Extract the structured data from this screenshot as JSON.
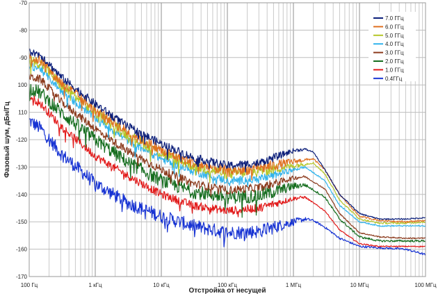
{
  "chart_data": {
    "type": "line",
    "xlabel": "Отстройка от несущей",
    "ylabel": "Фазовый шум, дБн/Гц",
    "x_scale": "log",
    "xlim": [
      100,
      100000000
    ],
    "ylim": [
      -170,
      -70
    ],
    "grid": true,
    "legend_position": "top-right",
    "x_ticks": [
      {
        "value": 100,
        "label": "100 Гц"
      },
      {
        "value": 1000,
        "label": "1 кГц"
      },
      {
        "value": 10000,
        "label": "10 кГц"
      },
      {
        "value": 100000,
        "label": "100 кГц"
      },
      {
        "value": 1000000,
        "label": "1 МГц"
      },
      {
        "value": 10000000,
        "label": "10 МГц"
      },
      {
        "value": 100000000,
        "label": "100 МГц"
      }
    ],
    "y_ticks": [
      {
        "value": -70,
        "label": "-70"
      },
      {
        "value": -80,
        "label": "-80"
      },
      {
        "value": -90,
        "label": "-90"
      },
      {
        "value": -100,
        "label": "100"
      },
      {
        "value": -110,
        "label": "110"
      },
      {
        "value": -120,
        "label": "-120"
      },
      {
        "value": -130,
        "label": "-130"
      },
      {
        "value": -140,
        "label": "-140"
      },
      {
        "value": -150,
        "label": "-150"
      },
      {
        "value": -160,
        "label": "-160"
      },
      {
        "value": -170,
        "label": "-170"
      }
    ],
    "series": [
      {
        "name": "7.0 ГГц",
        "color": "#0c1f7a",
        "x": [
          100,
          150,
          300,
          1000,
          3000,
          10000,
          30000,
          100000,
          300000,
          1000000,
          1500000,
          2000000,
          3000000,
          5000000,
          10000000,
          20000000,
          50000000,
          100000000
        ],
        "y": [
          -88,
          -89,
          -97,
          -107,
          -115,
          -121.5,
          -126.5,
          -129.5,
          -128.5,
          -124,
          -123.5,
          -124.5,
          -131,
          -140,
          -147,
          -149,
          -149,
          -148.5
        ],
        "noise": 1.5
      },
      {
        "name": "6.0 ГГц",
        "color": "#e07020",
        "x": [
          100,
          150,
          300,
          1000,
          3000,
          10000,
          30000,
          100000,
          300000,
          1000000,
          2000000,
          3000000,
          5000000,
          10000000,
          20000000,
          50000000,
          100000000
        ],
        "y": [
          -90,
          -91,
          -99,
          -109,
          -117,
          -124,
          -128.5,
          -131.5,
          -130.5,
          -128,
          -127,
          -131,
          -140,
          -148,
          -149.5,
          -150,
          -149.5
        ],
        "noise": 2
      },
      {
        "name": "5.0 ГГц",
        "color": "#b5c628",
        "x": [
          100,
          150,
          300,
          1000,
          3000,
          10000,
          30000,
          100000,
          300000,
          1000000,
          2000000,
          3000000,
          5000000,
          10000000,
          20000000,
          50000000,
          100000000
        ],
        "y": [
          -91,
          -92,
          -100,
          -110,
          -118,
          -125,
          -129.5,
          -132.5,
          -131.5,
          -129.5,
          -128.5,
          -132.5,
          -142,
          -149,
          -150.5,
          -150.5,
          -150
        ],
        "noise": 2
      },
      {
        "name": "4.0 ГГц",
        "color": "#32b4ec",
        "x": [
          100,
          150,
          300,
          1000,
          3000,
          10000,
          30000,
          100000,
          300000,
          1000000,
          1500000,
          3000000,
          5000000,
          10000000,
          20000000,
          50000000,
          100000000
        ],
        "y": [
          -93,
          -94,
          -102,
          -112,
          -120,
          -127,
          -131.5,
          -135,
          -134.5,
          -131,
          -130,
          -135,
          -144,
          -150,
          -151.5,
          -151.5,
          -151.5
        ],
        "noise": 1.5
      },
      {
        "name": "3.0 ГГц",
        "color": "#8b3a1c",
        "x": [
          100,
          150,
          300,
          1000,
          3000,
          10000,
          30000,
          100000,
          300000,
          1000000,
          1500000,
          3000000,
          5000000,
          10000000,
          20000000,
          50000000,
          100000000
        ],
        "y": [
          -97,
          -98,
          -106,
          -116,
          -124,
          -131,
          -136,
          -138.5,
          -137.5,
          -134,
          -133.5,
          -138,
          -147,
          -154,
          -155.5,
          -156,
          -156
        ],
        "noise": 1.5
      },
      {
        "name": "2.0 ГГц",
        "color": "#156d1e",
        "x": [
          100,
          150,
          300,
          1000,
          3000,
          10000,
          30000,
          100000,
          300000,
          1000000,
          1500000,
          3000000,
          5000000,
          10000000,
          20000000,
          50000000,
          100000000
        ],
        "y": [
          -101,
          -103,
          -110,
          -120,
          -128,
          -135,
          -139,
          -141,
          -140.5,
          -137,
          -136.5,
          -141,
          -149,
          -155.5,
          -157,
          -157,
          -157
        ],
        "noise": 2.5
      },
      {
        "name": "1.0 ГГц",
        "color": "#e21b1b",
        "x": [
          100,
          150,
          300,
          1000,
          3000,
          10000,
          30000,
          100000,
          300000,
          1000000,
          1500000,
          3000000,
          5000000,
          10000000,
          20000000,
          50000000,
          100000000
        ],
        "y": [
          -104,
          -107,
          -115,
          -126,
          -133,
          -140,
          -144,
          -146,
          -145,
          -141.5,
          -141,
          -146,
          -153,
          -158,
          -159,
          -159,
          -159
        ],
        "noise": 1.5
      },
      {
        "name": "0.4ГГц",
        "color": "#1733d3",
        "x": [
          100,
          150,
          300,
          1000,
          3000,
          10000,
          30000,
          100000,
          300000,
          1000000,
          1500000,
          2000000,
          3000000,
          5000000,
          10000000,
          20000000,
          50000000,
          100000000
        ],
        "y": [
          -113,
          -116,
          -125,
          -136,
          -143,
          -148,
          -151.5,
          -154,
          -153.5,
          -150,
          -149,
          -149.5,
          -152,
          -156,
          -159,
          -159.5,
          -160,
          -162
        ],
        "noise": 2.5
      }
    ]
  }
}
